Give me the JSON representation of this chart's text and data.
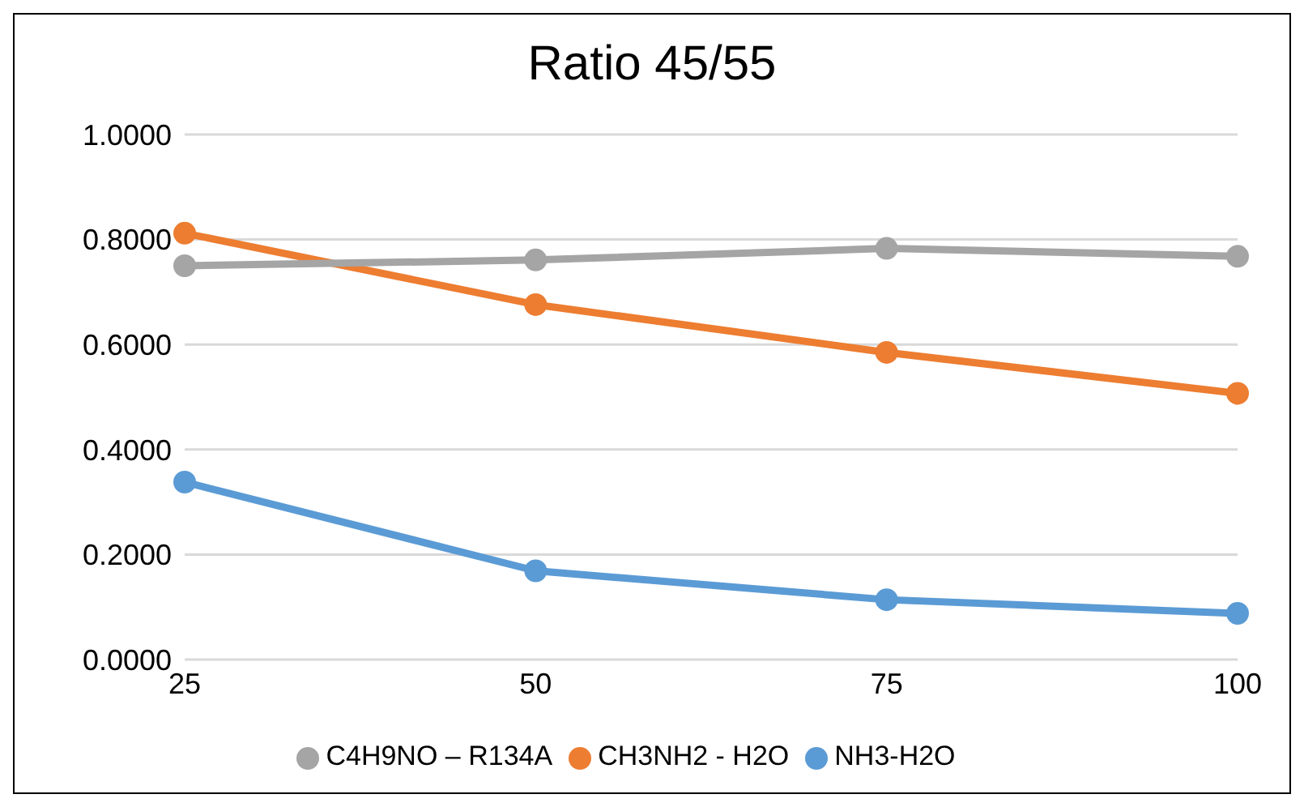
{
  "chart_data": {
    "type": "line",
    "title": "Ratio 45/55",
    "categories": [
      "25",
      "50",
      "75",
      "100"
    ],
    "series": [
      {
        "name": "NH3-H2O",
        "color": "#5b9bd5",
        "values": [
          0.338,
          0.169,
          0.114,
          0.088
        ]
      },
      {
        "name": "CH3NH2 - H2O",
        "color": "#ed7d31",
        "values": [
          0.812,
          0.676,
          0.585,
          0.507
        ]
      },
      {
        "name": "C4H9NO – R134A",
        "color": "#a5a5a5",
        "values": [
          0.75,
          0.761,
          0.783,
          0.768
        ]
      }
    ],
    "ylim": [
      0,
      1
    ],
    "yticks": [
      {
        "value": 0,
        "label": "0.0000"
      },
      {
        "value": 0.2,
        "label": "0.2000"
      },
      {
        "value": 0.4,
        "label": "0.4000"
      },
      {
        "value": 0.6,
        "label": "0.6000"
      },
      {
        "value": 0.8,
        "label": "0.8000"
      },
      {
        "value": 1,
        "label": "1.0000"
      }
    ],
    "grid": "y",
    "legend": "bottom",
    "marker": "circle",
    "line_style": "solid"
  }
}
